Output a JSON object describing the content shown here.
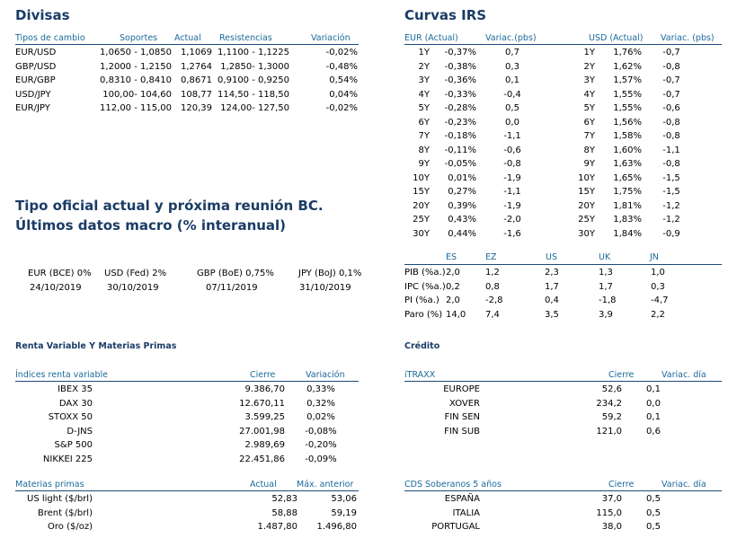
{
  "divisas": {
    "title": "Divisas",
    "headers": [
      "Tipos de cambio",
      "Soportes",
      "Actual",
      "Resistencias",
      "Variación"
    ],
    "rows": [
      [
        "EUR/USD",
        "1,0650 - 1,0850",
        "1,1069",
        "1,1100 - 1,1225",
        "-0,02%"
      ],
      [
        "GBP/USD",
        "1,2000 - 1,2150",
        "1,2764",
        "1,2850- 1,3000",
        "-0,48%"
      ],
      [
        "EUR/GBP",
        "0,8310 - 0,8410",
        "0,8671",
        "0,9100 - 0,9250",
        "0,54%"
      ],
      [
        "USD/JPY",
        "100,00- 104,60",
        "108,77",
        "114,50 - 118,50",
        "0,04%"
      ],
      [
        "EUR/JPY",
        "112,00 - 115,00",
        "120,39",
        "124,00- 127,50",
        "-0,02%"
      ]
    ]
  },
  "bc": {
    "title1": "Tipo oficial actual y próxima reunión BC.",
    "title2": "Últimos datos macro (% interanual)",
    "items": [
      {
        "label": "EUR (BCE) 0%",
        "date": "24/10/2019"
      },
      {
        "label": "USD (Fed) 2%",
        "date": "30/10/2019"
      },
      {
        "label": "GBP (BoE) 0,75%",
        "date": "07/11/2019"
      },
      {
        "label": "JPY (BoJ) 0,1%",
        "date": "31/10/2019"
      }
    ]
  },
  "irs": {
    "title": "Curvas IRS",
    "headers": [
      "EUR (Actual)",
      "Variac.(pbs)",
      "USD (Actual)",
      "Variac. (pbs)"
    ],
    "rows": [
      [
        "1Y",
        "-0,37%",
        "0,7",
        "1Y",
        "1,76%",
        "-0,7"
      ],
      [
        "2Y",
        "-0,38%",
        "0,3",
        "2Y",
        "1,62%",
        "-0,8"
      ],
      [
        "3Y",
        "-0,36%",
        "0,1",
        "3Y",
        "1,57%",
        "-0,7"
      ],
      [
        "4Y",
        "-0,33%",
        "-0,4",
        "4Y",
        "1,55%",
        "-0,7"
      ],
      [
        "5Y",
        "-0,28%",
        "0,5",
        "5Y",
        "1,55%",
        "-0,6"
      ],
      [
        "6Y",
        "-0,23%",
        "0,0",
        "6Y",
        "1,56%",
        "-0,8"
      ],
      [
        "7Y",
        "-0,18%",
        "-1,1",
        "7Y",
        "1,58%",
        "-0,8"
      ],
      [
        "8Y",
        "-0,11%",
        "-0,6",
        "8Y",
        "1,60%",
        "-1,1"
      ],
      [
        "9Y",
        "-0,05%",
        "-0,8",
        "9Y",
        "1,63%",
        "-0,8"
      ],
      [
        "10Y",
        "0,01%",
        "-1,9",
        "10Y",
        "1,65%",
        "-1,5"
      ],
      [
        "15Y",
        "0,27%",
        "-1,1",
        "15Y",
        "1,75%",
        "-1,5"
      ],
      [
        "20Y",
        "0,39%",
        "-1,9",
        "20Y",
        "1,81%",
        "-1,2"
      ],
      [
        "25Y",
        "0,43%",
        "-2,0",
        "25Y",
        "1,83%",
        "-1,2"
      ],
      [
        "30Y",
        "0,44%",
        "-1,6",
        "30Y",
        "1,84%",
        "-0,9"
      ]
    ]
  },
  "macro": {
    "headers": [
      "ES",
      "EZ",
      "US",
      "UK",
      "JN"
    ],
    "rows": [
      [
        "PIB (%a.)",
        "2,0",
        "1,2",
        "2,3",
        "1,3",
        "1,0"
      ],
      [
        "IPC (%a.)",
        "0,2",
        "0,8",
        "1,7",
        "1,7",
        "0,3"
      ],
      [
        "PI (%a.)",
        "2,0",
        "-2,8",
        "0,4",
        "-1,8",
        "-4,7"
      ],
      [
        "Paro (%)",
        "14,0",
        "7,4",
        "3,5",
        "3,9",
        "2,2"
      ]
    ]
  },
  "rv": {
    "title": "Renta Variable Y Materias Primas",
    "headers": [
      "Índices renta variable",
      "Cierre",
      "Variación"
    ],
    "rows": [
      [
        "IBEX 35",
        "9.386,70",
        "0,33%"
      ],
      [
        "DAX 30",
        "12.670,11",
        "0,32%"
      ],
      [
        "STOXX 50",
        "3.599,25",
        "0,02%"
      ],
      [
        "D-JNS",
        "27.001,98",
        "-0,08%"
      ],
      [
        "S&P 500",
        "2.989,69",
        "-0,20%"
      ],
      [
        "NIKKEI 225",
        "22.451,86",
        "-0,09%"
      ]
    ]
  },
  "mp": {
    "headers": [
      "Materias primas",
      "Actual",
      "Máx. anterior"
    ],
    "rows": [
      [
        "US light ($/brl)",
        "52,83",
        "53,06"
      ],
      [
        "Brent ($/brl)",
        "58,88",
        "59,19"
      ],
      [
        "Oro ($/oz)",
        "1.487,80",
        "1.496,80"
      ]
    ]
  },
  "credito": {
    "title": "Crédito",
    "headers": [
      "iTRAXX",
      "Cierre",
      "Variac. día"
    ],
    "rows": [
      [
        "EUROPE",
        "52,6",
        "0,1"
      ],
      [
        "XOVER",
        "234,2",
        "0,0"
      ],
      [
        "FIN SEN",
        "59,2",
        "0,1"
      ],
      [
        "FIN SUB",
        "121,0",
        "0,6"
      ]
    ]
  },
  "cds": {
    "headers": [
      "CDS Soberanos 5 años",
      "Cierre",
      "Variac. día"
    ],
    "rows": [
      [
        "ESPAÑA",
        "37,0",
        "0,5"
      ],
      [
        "ITALIA",
        "115,0",
        "0,5"
      ],
      [
        "PORTUGAL",
        "38,0",
        "0,5"
      ]
    ]
  }
}
